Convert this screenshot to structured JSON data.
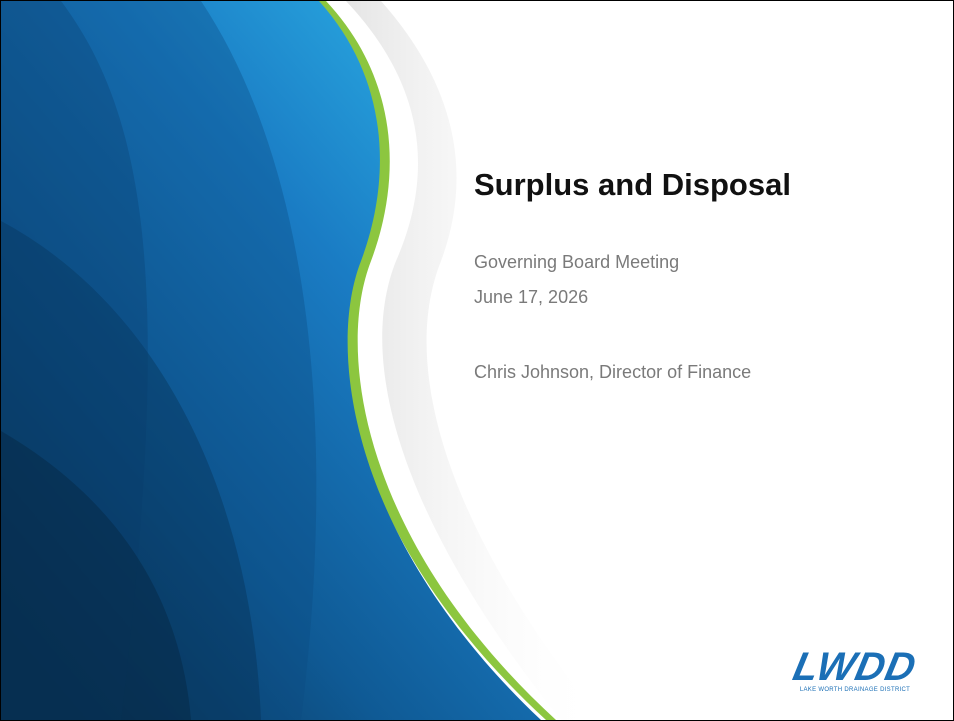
{
  "slide": {
    "title": "Surplus and Disposal",
    "subtitle_lines": [
      "Governing Board Meeting",
      "June 17, 2026",
      "Chris Johnson, Director of Finance"
    ],
    "logo": {
      "text": "LWDD",
      "caption": "LAKE WORTH DRAINAGE DISTRICT"
    }
  }
}
